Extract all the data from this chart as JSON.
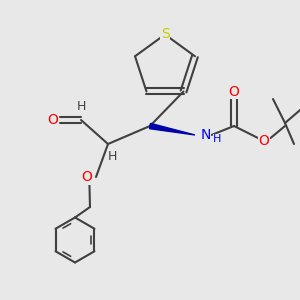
{
  "bg_color": "#e8e8e8",
  "atom_colors": {
    "C": "#404040",
    "H": "#404040",
    "O": "#ff0000",
    "N": "#0000ff",
    "S": "#cccc00"
  },
  "bond_color": "#404040",
  "wedge_color": "#0000aa"
}
